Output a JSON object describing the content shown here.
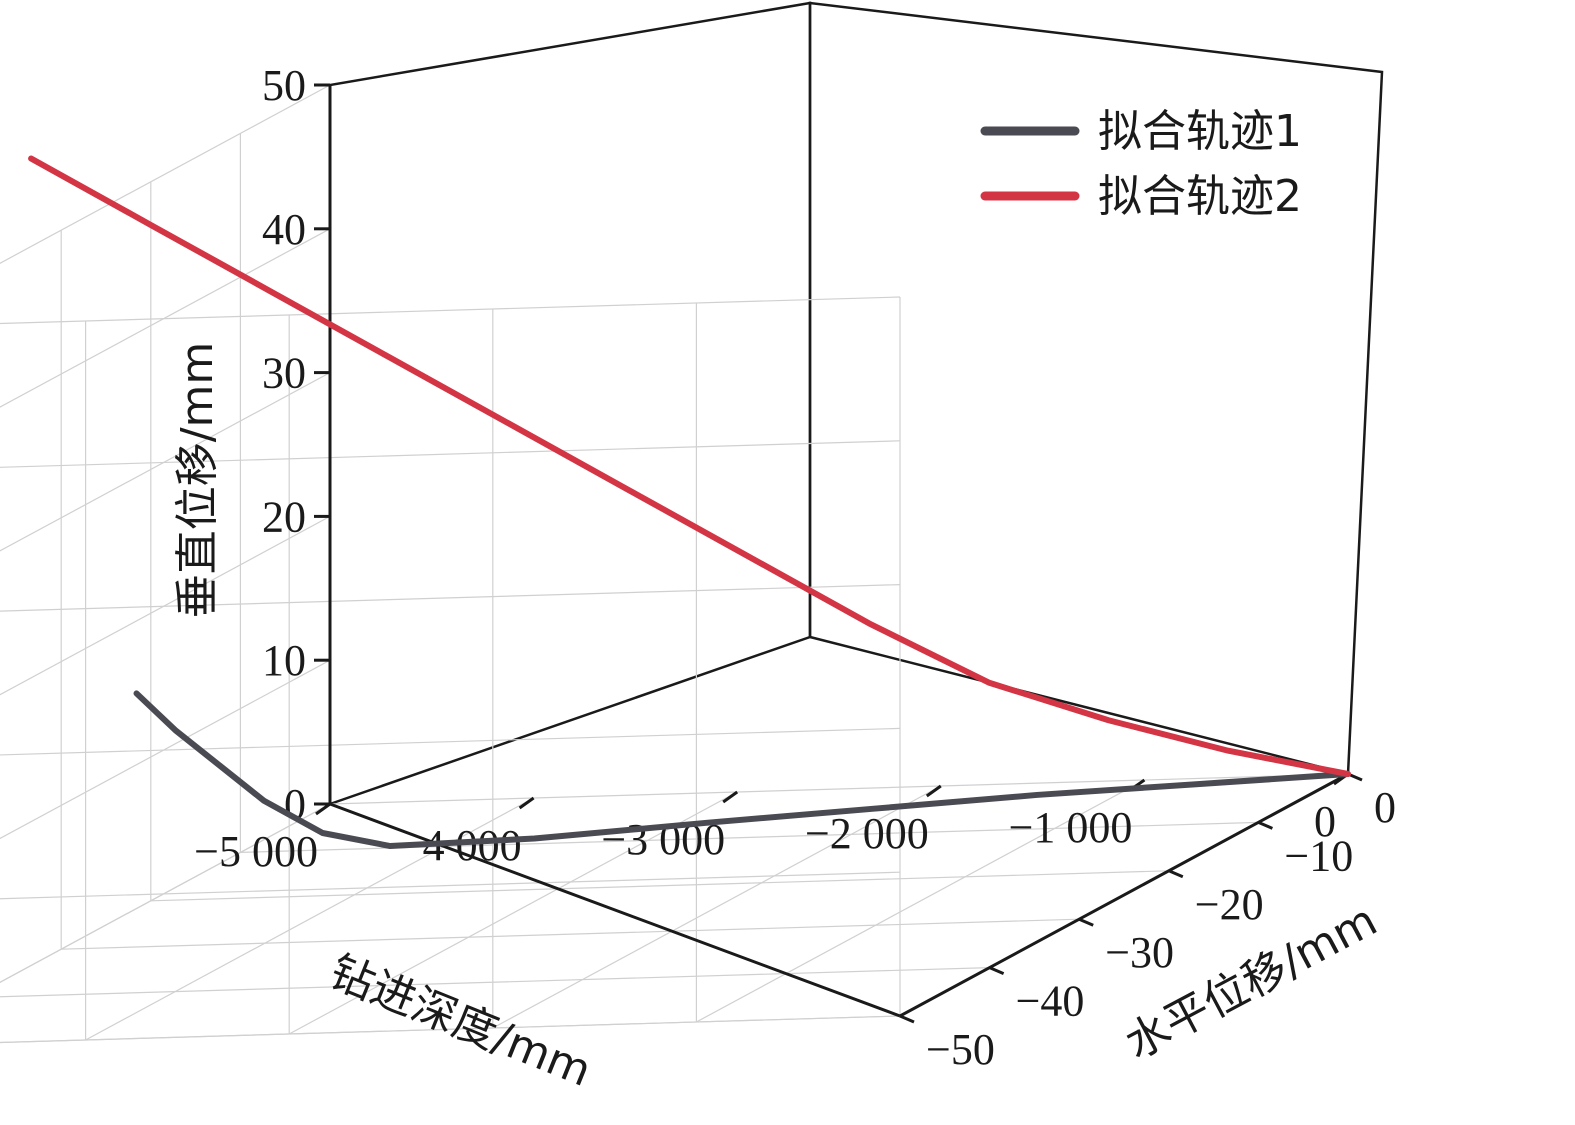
{
  "chart_data": {
    "type": "line",
    "dimensions": "3d",
    "axes": {
      "x": {
        "label": "钻进深度/mm",
        "range": [
          -5000,
          0
        ],
        "ticks": [
          -5000,
          -4000,
          -3000,
          -2000,
          -1000,
          0
        ],
        "tick_labels": [
          "−5 000",
          "−4 000",
          "−3 000",
          "−2 000",
          "−1 000",
          "0"
        ]
      },
      "y": {
        "label": "水平位移/mm",
        "range": [
          -50,
          0
        ],
        "ticks": [
          -50,
          -40,
          -30,
          -20,
          -10,
          0
        ],
        "tick_labels": [
          "−50",
          "−40",
          "−30",
          "−20",
          "−10",
          "0"
        ]
      },
      "z": {
        "label": "垂直位移/mm",
        "range": [
          0,
          50
        ],
        "ticks": [
          0,
          10,
          20,
          30,
          40,
          50
        ],
        "tick_labels": [
          "0",
          "10",
          "20",
          "30",
          "40",
          "50"
        ]
      }
    },
    "grid": true,
    "legend": {
      "position": "top-right"
    },
    "series": [
      {
        "name": "拟合轨迹1",
        "color": "#4a4a52",
        "points": [
          [
            0,
            0,
            0
          ],
          [
            -500,
            -6,
            1.5
          ],
          [
            -1000,
            -12,
            3.0
          ],
          [
            -1500,
            -19,
            4.6
          ],
          [
            -2000,
            -26,
            6.2
          ],
          [
            -2500,
            -34,
            8.0
          ],
          [
            -2900,
            -41,
            10.0
          ],
          [
            -3100,
            -44,
            12.0
          ],
          [
            -3300,
            -46,
            15.0
          ],
          [
            -3450,
            -47.5,
            18.0
          ],
          [
            -3600,
            -49,
            21.0
          ],
          [
            -3750,
            -50,
            24.0
          ]
        ]
      },
      {
        "name": "拟合轨迹2",
        "color": "#d43545",
        "points": [
          [
            0,
            0,
            0
          ],
          [
            -500,
            -2,
            2.5
          ],
          [
            -1000,
            -4,
            5.5
          ],
          [
            -1500,
            -6,
            9.0
          ],
          [
            -2000,
            -8,
            14.0
          ],
          [
            -2500,
            -10,
            19.5
          ],
          [
            -3000,
            -12,
            25.0
          ],
          [
            -3500,
            -14,
            30.5
          ],
          [
            -4000,
            -16,
            36.0
          ],
          [
            -4500,
            -18,
            41.5
          ],
          [
            -5000,
            -20,
            47.0
          ],
          [
            -5500,
            -22,
            52.5
          ]
        ]
      }
    ]
  }
}
